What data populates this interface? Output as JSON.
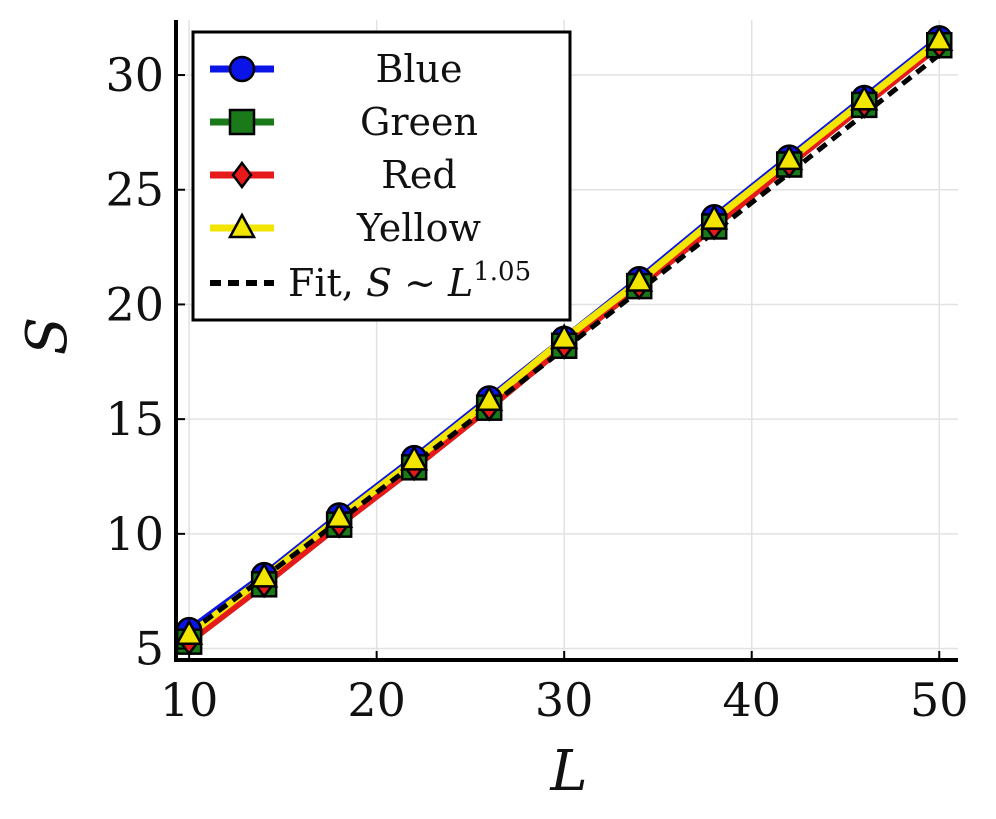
{
  "chart_data": {
    "type": "line",
    "title": "",
    "xlabel": "L",
    "ylabel": "S",
    "xlim": [
      9.3,
      51
    ],
    "ylim": [
      4.5,
      32.4
    ],
    "x_ticks": [
      10,
      20,
      30,
      40,
      50
    ],
    "y_ticks": [
      5,
      10,
      15,
      20,
      25,
      30
    ],
    "grid": true,
    "legend_position": "top-left",
    "x": [
      10,
      14,
      18,
      22,
      26,
      30,
      34,
      38,
      42,
      46,
      50
    ],
    "series": [
      {
        "name": "Blue",
        "color": "#0a14e6",
        "marker": "circle",
        "values": [
          5.8,
          8.2,
          10.8,
          13.3,
          15.9,
          18.5,
          21.1,
          23.8,
          26.4,
          29.0,
          31.6
        ]
      },
      {
        "name": "Green",
        "color": "#1a7a1a",
        "marker": "square",
        "values": [
          5.3,
          7.8,
          10.4,
          12.9,
          15.5,
          18.2,
          20.8,
          23.4,
          26.1,
          28.7,
          31.3
        ]
      },
      {
        "name": "Red",
        "color": "#e61a1a",
        "marker": "diamond",
        "values": [
          5.3,
          7.8,
          10.4,
          12.9,
          15.5,
          18.2,
          20.8,
          23.4,
          26.1,
          28.7,
          31.3
        ]
      },
      {
        "name": "Yellow",
        "color": "#f2e600",
        "marker": "triangle",
        "values": [
          5.6,
          8.1,
          10.7,
          13.2,
          15.8,
          18.5,
          21.0,
          23.7,
          26.3,
          28.9,
          31.5
        ]
      }
    ],
    "fit": {
      "legend_prefix": "Fit, ",
      "legend_s": "S",
      "legend_sim": "∼",
      "legend_l": "L",
      "legend_exponent": "1.05",
      "color": "#000000",
      "exponent": 1.05,
      "x_range": [
        10,
        50
      ],
      "values_at_range": [
        5.7,
        31.6
      ]
    }
  }
}
